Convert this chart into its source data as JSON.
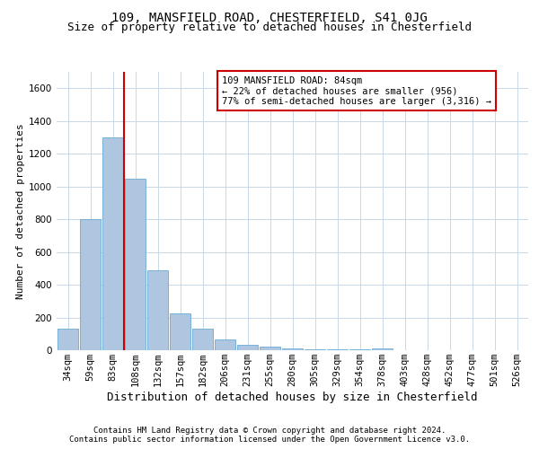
{
  "title1": "109, MANSFIELD ROAD, CHESTERFIELD, S41 0JG",
  "title2": "Size of property relative to detached houses in Chesterfield",
  "xlabel": "Distribution of detached houses by size in Chesterfield",
  "ylabel": "Number of detached properties",
  "bar_color": "#aec6df",
  "bar_edge_color": "#6aaad4",
  "categories": [
    "34sqm",
    "59sqm",
    "83sqm",
    "108sqm",
    "132sqm",
    "157sqm",
    "182sqm",
    "206sqm",
    "231sqm",
    "255sqm",
    "280sqm",
    "305sqm",
    "329sqm",
    "354sqm",
    "378sqm",
    "403sqm",
    "428sqm",
    "452sqm",
    "477sqm",
    "501sqm",
    "526sqm"
  ],
  "values": [
    130,
    800,
    1300,
    1050,
    490,
    225,
    130,
    65,
    35,
    20,
    10,
    5,
    5,
    5,
    10,
    0,
    0,
    0,
    0,
    0,
    0
  ],
  "ylim": [
    0,
    1700
  ],
  "yticks": [
    0,
    200,
    400,
    600,
    800,
    1000,
    1200,
    1400,
    1600
  ],
  "property_line_x": 2.5,
  "annotation_text": "109 MANSFIELD ROAD: 84sqm\n← 22% of detached houses are smaller (956)\n77% of semi-detached houses are larger (3,316) →",
  "annotation_box_color": "#ffffff",
  "annotation_border_color": "#cc0000",
  "vline_color": "#cc0000",
  "footer1": "Contains HM Land Registry data © Crown copyright and database right 2024.",
  "footer2": "Contains public sector information licensed under the Open Government Licence v3.0.",
  "bg_color": "#ffffff",
  "grid_color": "#c8d8e8",
  "title1_fontsize": 10,
  "title2_fontsize": 9,
  "xlabel_fontsize": 9,
  "ylabel_fontsize": 8,
  "tick_fontsize": 7.5,
  "annot_fontsize": 7.5,
  "footer_fontsize": 6.5
}
